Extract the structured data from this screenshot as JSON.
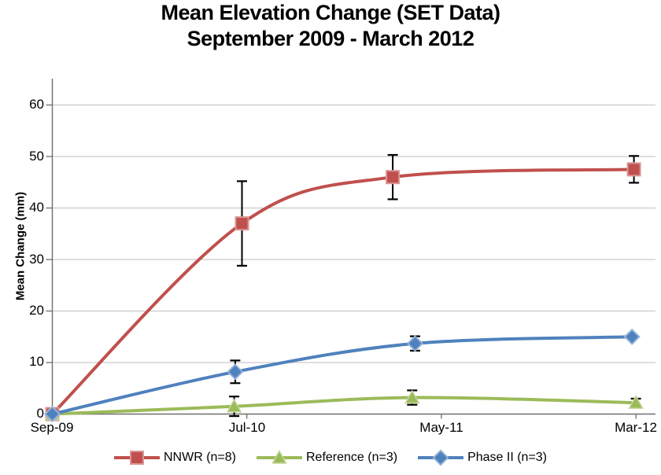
{
  "title": {
    "line1": "Mean Elevation Change (SET Data)",
    "line2": "September 2009 - March 2012"
  },
  "y_axis": {
    "label": "Mean Change (mm)",
    "ticks": [
      "0",
      "10",
      "20",
      "30",
      "40",
      "50",
      "60"
    ]
  },
  "x_axis": {
    "ticks": [
      "Sep-09",
      "Jul-10",
      "May-11",
      "Mar-12"
    ]
  },
  "legend": {
    "items": [
      {
        "label": "NNWR (n=8)"
      },
      {
        "label": "Reference (n=3)"
      },
      {
        "label": "Phase II (n=3)"
      }
    ]
  },
  "colors": {
    "nnwr": "#C0504D",
    "nnwr_border": "#D99694",
    "reference": "#9BBB59",
    "reference_border": "#C3D69B",
    "phase2": "#4F81BD",
    "phase2_border": "#95B3D7",
    "gridline": "#C9C9C9",
    "axis": "#6E6E6E",
    "error_bar": "#000000",
    "text": "#000000",
    "background": "#FFFFFF"
  },
  "chart_data": {
    "type": "line",
    "title": "Mean Elevation Change (SET Data) September 2009 - March 2012",
    "xlabel": "",
    "ylabel": "Mean Change (mm)",
    "ylim": [
      0,
      65
    ],
    "y_major_unit": 10,
    "grid": "horizontal-only",
    "smoothed_lines": true,
    "legend_position": "bottom",
    "x_tick_labels": [
      "Sep-09",
      "Jul-10",
      "May-11",
      "Mar-12"
    ],
    "x_tick_months": [
      0,
      10,
      20,
      30
    ],
    "series": [
      {
        "name": "NNWR (n=8)",
        "marker": "square",
        "color": "#C0504D",
        "marker_border": "#D99694",
        "x_months": [
          0,
          9.75,
          17.5,
          29.9
        ],
        "values": [
          0,
          37,
          46,
          47.5
        ],
        "errors": [
          0,
          8.2,
          4.3,
          2.6
        ]
      },
      {
        "name": "Reference (n=3)",
        "marker": "triangle",
        "color": "#9BBB59",
        "marker_border": "#C3D69B",
        "x_months": [
          0,
          9.35,
          18.5,
          30
        ],
        "values": [
          0,
          1.5,
          3.2,
          2.2
        ],
        "errors": [
          0,
          1.9,
          1.4,
          0.8
        ]
      },
      {
        "name": "Phase II (n=3)",
        "marker": "diamond",
        "color": "#4F81BD",
        "marker_border": "#95B3D7",
        "x_months": [
          0,
          9.4,
          18.65,
          29.8
        ],
        "values": [
          0,
          8.2,
          13.7,
          15
        ],
        "errors": [
          0,
          2.2,
          1.4,
          0
        ]
      }
    ]
  }
}
